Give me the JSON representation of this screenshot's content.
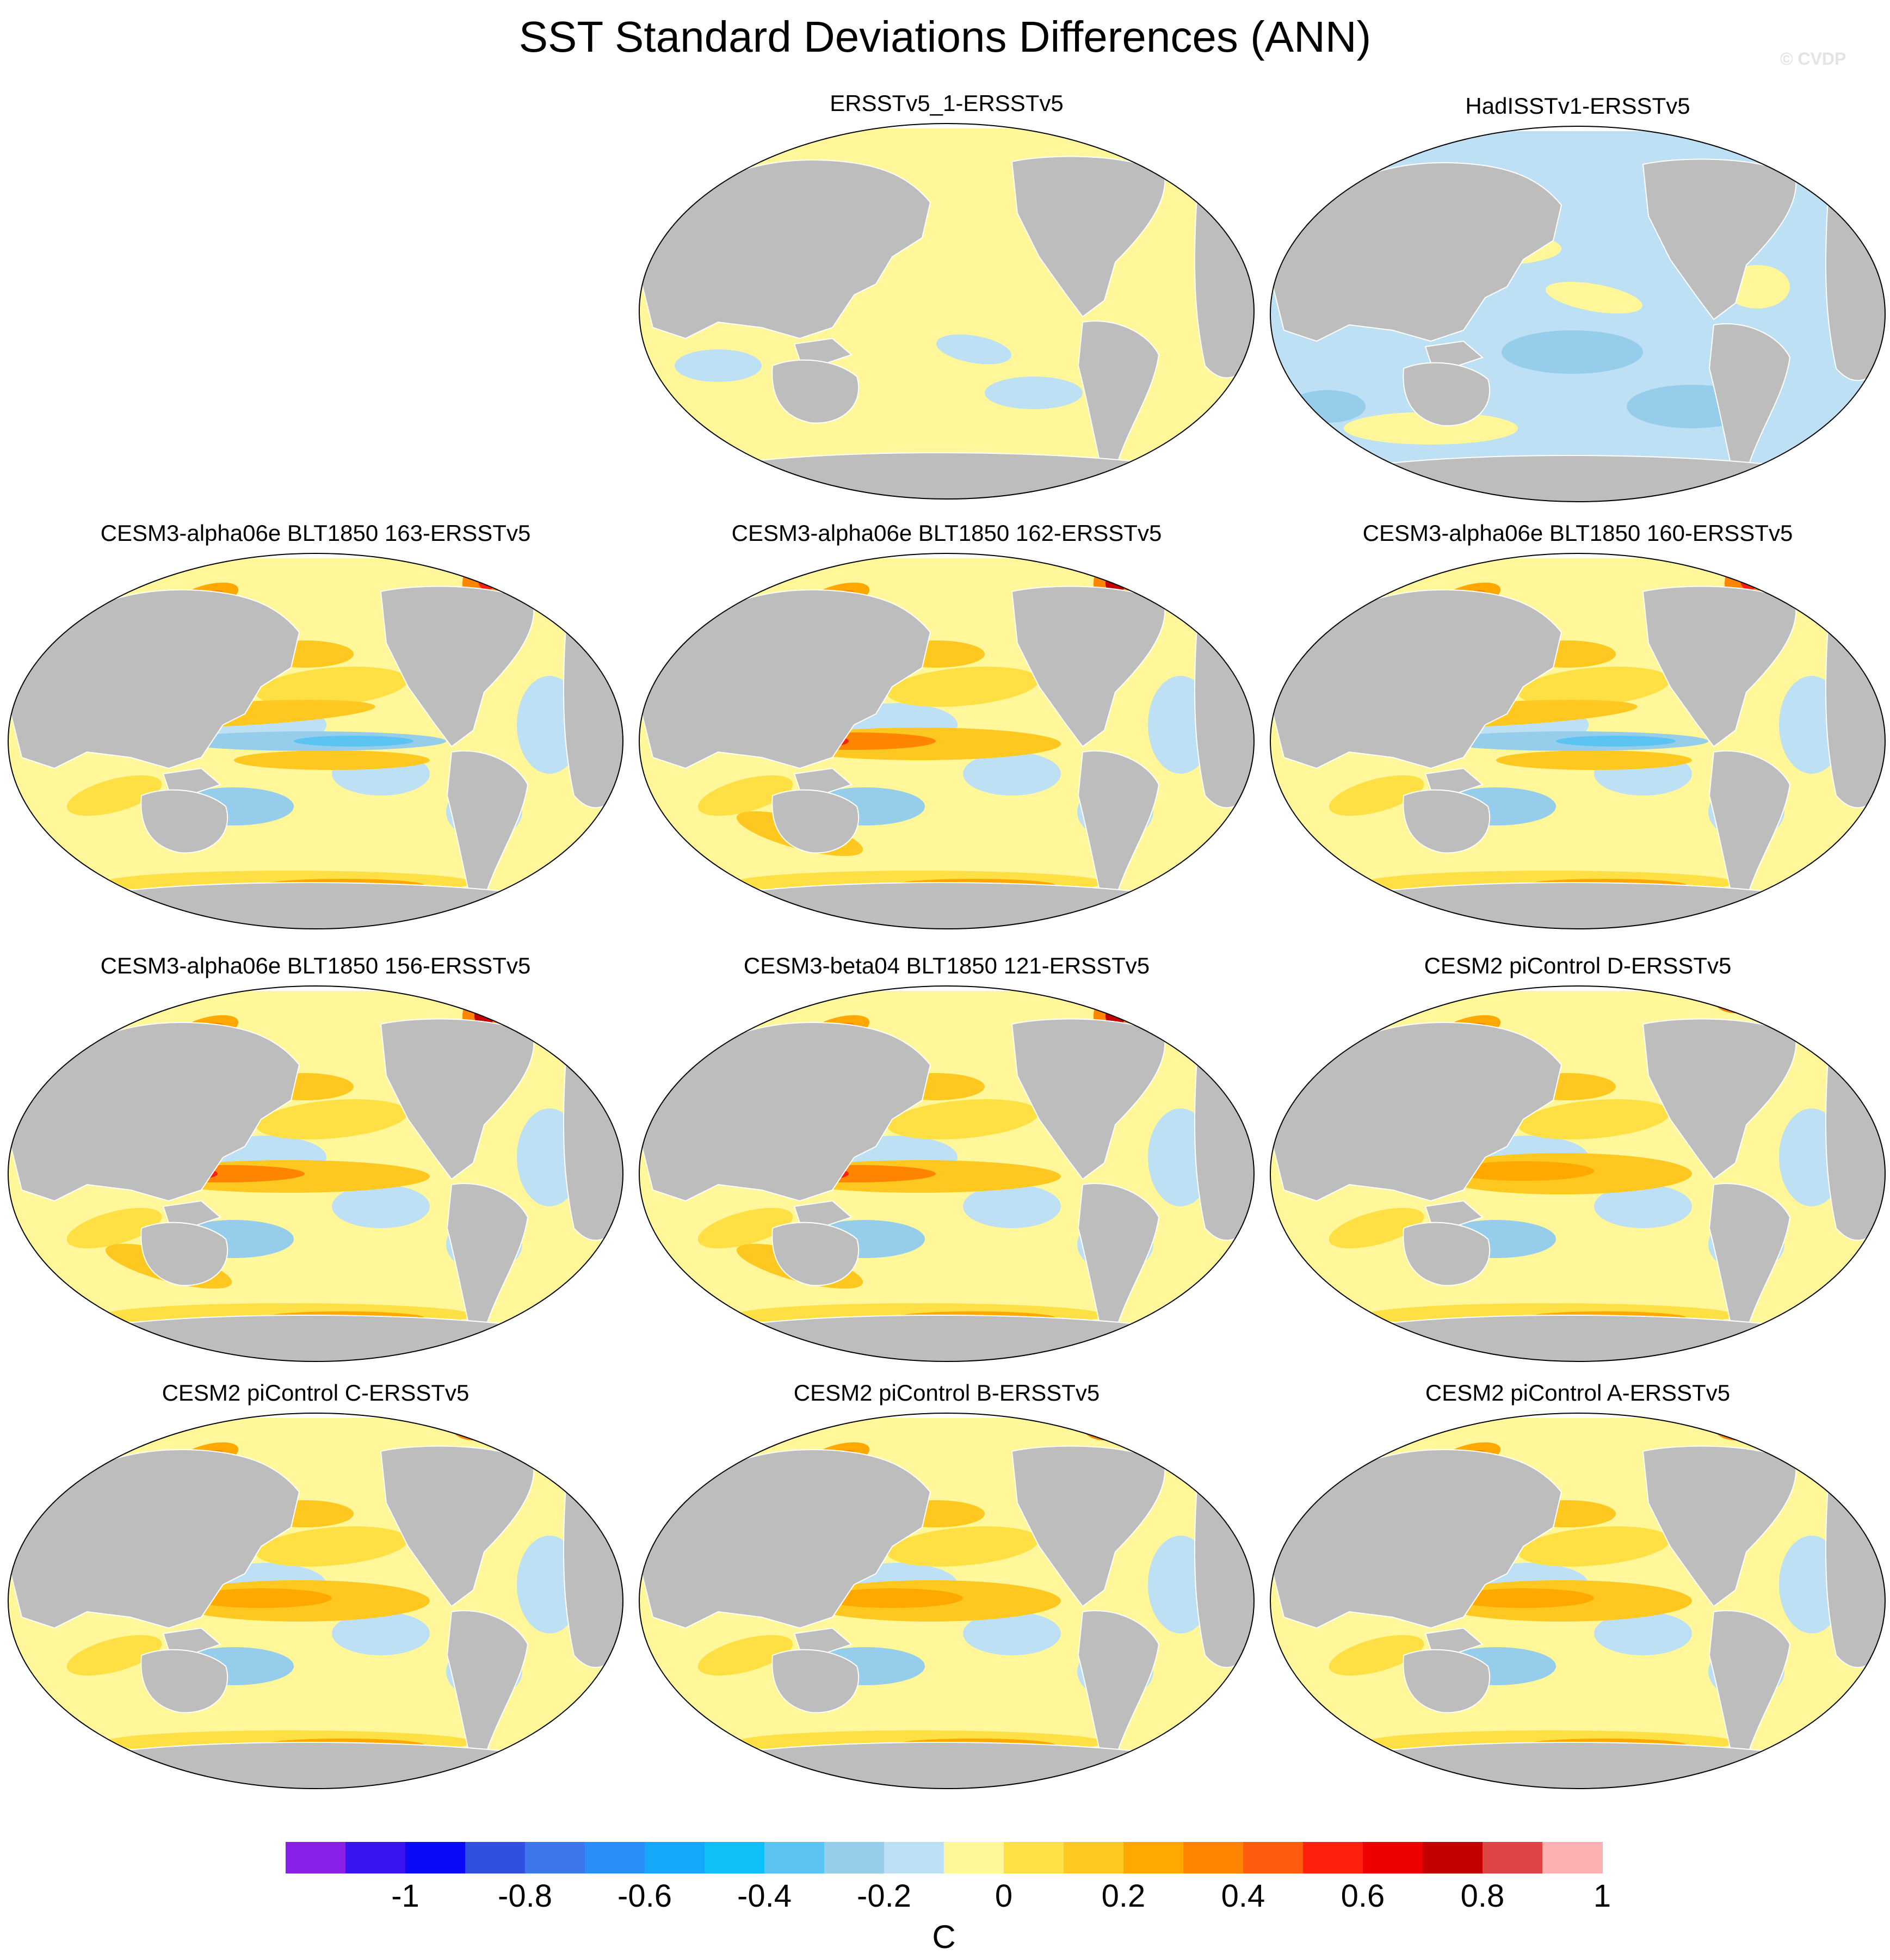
{
  "title": "SST Standard Deviations Differences (ANN)",
  "watermark": "© CVDP",
  "colors": {
    "land": "#bdbdbd",
    "ocean_zero": "#fff79a",
    "missing": "#ffffff"
  },
  "panels": [
    {
      "id": "ersstv5-1",
      "title": "ERSSTv5_1-ERSSTv5",
      "pattern": "near-zero-positive"
    },
    {
      "id": "hadisst",
      "title": "HadISSTv1-ERSSTv5",
      "pattern": "weak-negative"
    },
    {
      "id": "alpha06e-163",
      "title": "CESM3-alpha06e BLT1850 163-ERSSTv5",
      "pattern": "positive-tropical-negative-east-pacific"
    },
    {
      "id": "alpha06e-162",
      "title": "CESM3-alpha06e BLT1850 162-ERSSTv5",
      "pattern": "positive-strong-west-pacific"
    },
    {
      "id": "alpha06e-160",
      "title": "CESM3-alpha06e BLT1850 160-ERSSTv5",
      "pattern": "positive-tropical-negative-east-pacific"
    },
    {
      "id": "alpha06e-156",
      "title": "CESM3-alpha06e BLT1850 156-ERSSTv5",
      "pattern": "positive-strong-west-pacific"
    },
    {
      "id": "beta04-121",
      "title": "CESM3-beta04 BLT1850 121-ERSSTv5",
      "pattern": "positive-strong-west-pacific"
    },
    {
      "id": "picontrol-d",
      "title": "CESM2 piControl D-ERSSTv5",
      "pattern": "positive-enso-band"
    },
    {
      "id": "picontrol-c",
      "title": "CESM2 piControl C-ERSSTv5",
      "pattern": "positive-enso-band"
    },
    {
      "id": "picontrol-b",
      "title": "CESM2 piControl B-ERSSTv5",
      "pattern": "positive-enso-band"
    },
    {
      "id": "picontrol-a",
      "title": "CESM2 piControl A-ERSSTv5",
      "pattern": "positive-enso-band"
    }
  ],
  "colorbar": {
    "unit": "C",
    "tick_labels": [
      "-1",
      "-0.8",
      "-0.6",
      "-0.4",
      "-0.2",
      "0",
      "0.2",
      "0.4",
      "0.6",
      "0.8",
      "1"
    ],
    "colors": [
      "#8a1fe8",
      "#3a14f0",
      "#0a0af8",
      "#3050e0",
      "#3c78ec",
      "#2a8ef8",
      "#16a8f8",
      "#0ec0f8",
      "#5cc4f2",
      "#96cdea",
      "#bde0f5",
      "#fff79a",
      "#ffe044",
      "#ffc820",
      "#ffa800",
      "#ff8400",
      "#ff5a10",
      "#ff2010",
      "#ee0000",
      "#c40000",
      "#dd4444",
      "#ffb0b0"
    ]
  }
}
